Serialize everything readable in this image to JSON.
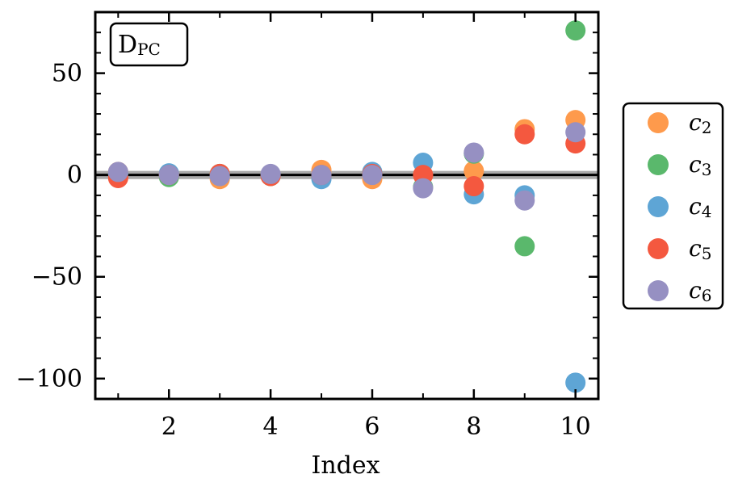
{
  "chart_data": {
    "type": "scatter",
    "title": "",
    "annotation": {
      "main": "D",
      "sub": "PC"
    },
    "xlabel": "Index",
    "ylabel": "",
    "xlim": [
      0.55,
      10.45
    ],
    "ylim": [
      -110,
      80
    ],
    "xticks": [
      2,
      4,
      6,
      8,
      10
    ],
    "xticks_minor": [
      1,
      3,
      5,
      7,
      9
    ],
    "yticks": [
      50,
      0,
      -50,
      -100
    ],
    "ytick_labels": [
      "50",
      "0",
      "−50",
      "−100"
    ],
    "hlines": [
      {
        "y": 0,
        "color": "#000000"
      }
    ],
    "band": {
      "y0": -2,
      "y1": 2,
      "color": "#aaaaaa"
    },
    "legend_position": "outside-right",
    "x": [
      1,
      2,
      3,
      4,
      5,
      6,
      7,
      8,
      9,
      10
    ],
    "series": [
      {
        "name": "c",
        "sub": "2",
        "color": "#fe9a4c",
        "values": [
          1.5,
          0.2,
          -2.0,
          0.0,
          2.5,
          -2.0,
          0.0,
          2.0,
          22.5,
          27.0
        ]
      },
      {
        "name": "c",
        "sub": "3",
        "color": "#5ab86c",
        "values": [
          0.5,
          -1.0,
          0.5,
          -0.5,
          -0.5,
          0.5,
          -6.0,
          10.5,
          -35.0,
          71.0
        ]
      },
      {
        "name": "c",
        "sub": "4",
        "color": "#5ea5d5",
        "values": [
          0.5,
          0.8,
          -0.5,
          0.0,
          -2.0,
          1.5,
          6.0,
          -9.5,
          -10.0,
          -102.0
        ]
      },
      {
        "name": "c",
        "sub": "5",
        "color": "#f4583f",
        "values": [
          -1.5,
          0.0,
          0.5,
          -0.5,
          0.0,
          0.5,
          0.0,
          -5.5,
          20.0,
          15.5
        ]
      },
      {
        "name": "c",
        "sub": "6",
        "color": "#9690c2",
        "values": [
          1.5,
          0.0,
          -0.5,
          0.5,
          0.0,
          0.0,
          -6.5,
          11.0,
          -12.5,
          21.0
        ]
      }
    ]
  }
}
